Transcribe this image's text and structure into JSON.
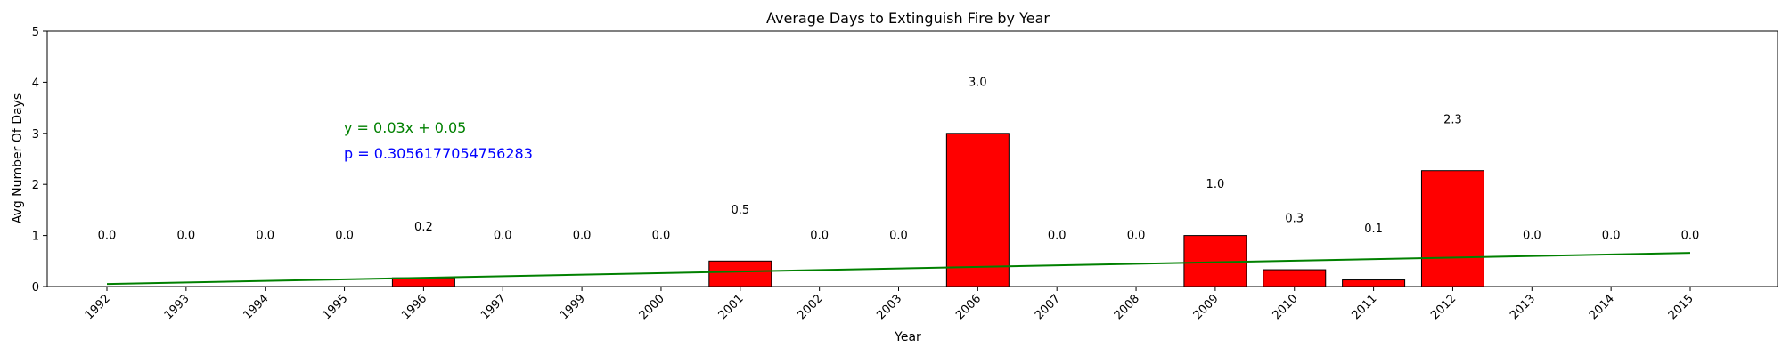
{
  "chart_data": {
    "type": "bar",
    "title": "Average Days to Extinguish Fire by Year",
    "xlabel": "Year",
    "ylabel": "Avg Number Of Days",
    "categories": [
      "1992",
      "1993",
      "1994",
      "1995",
      "1996",
      "1997",
      "1999",
      "2000",
      "2001",
      "2002",
      "2003",
      "2006",
      "2007",
      "2008",
      "2009",
      "2010",
      "2011",
      "2012",
      "2013",
      "2014",
      "2015"
    ],
    "values": [
      0.0,
      0.0,
      0.0,
      0.0,
      0.2,
      0.0,
      0.0,
      0.0,
      0.5,
      0.0,
      0.0,
      3.0,
      0.0,
      0.0,
      1.0,
      0.3,
      0.1,
      2.3,
      0.0,
      0.0,
      0.0
    ],
    "bar_heights": [
      0,
      0,
      0,
      0,
      0.17,
      0,
      0,
      0,
      0.5,
      0,
      0,
      3.0,
      0,
      0,
      1.0,
      0.33,
      0.13,
      2.27,
      0,
      0,
      0
    ],
    "data_labels": [
      "0.0",
      "0.0",
      "0.0",
      "0.0",
      "0.2",
      "0.0",
      "0.0",
      "0.0",
      "0.5",
      "0.0",
      "0.0",
      "3.0",
      "0.0",
      "0.0",
      "1.0",
      "0.3",
      "0.1",
      "2.3",
      "0.0",
      "0.0",
      "0.0"
    ],
    "ylim": [
      0,
      5
    ],
    "yticks": [
      0,
      1,
      2,
      3,
      4,
      5
    ],
    "bar_color": "#ff0000",
    "bar_edge_color": "#000000",
    "trendline": {
      "equation": "y = 0.03x + 0.05",
      "p_value": "p = 0.3056177054756283",
      "color": "#008000",
      "p_color": "#0000ff",
      "y_start": 0.05,
      "y_end": 0.66
    },
    "grid": false,
    "legend": "none"
  }
}
